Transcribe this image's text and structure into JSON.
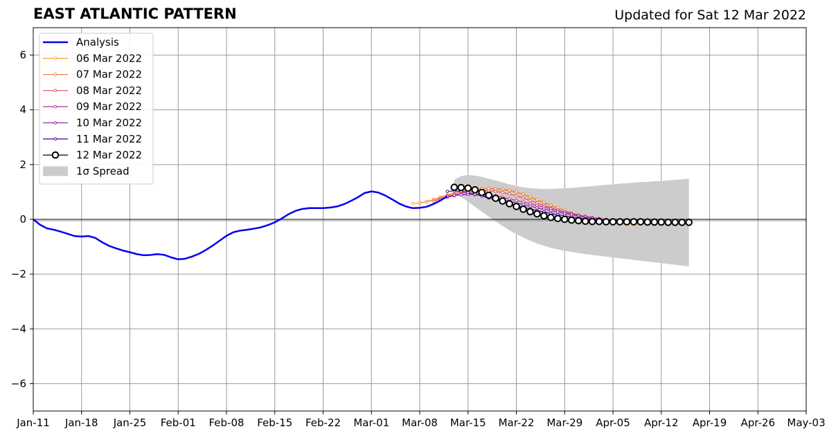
{
  "chart_data": {
    "type": "line",
    "title": "EAST ATLANTIC PATTERN",
    "subtitle": "Updated for Sat 12 Mar 2022",
    "ylim": [
      -7,
      7
    ],
    "xlim": [
      "2022-01-11",
      "2022-05-03"
    ],
    "yticks": [
      6,
      4,
      2,
      0,
      -2,
      -4,
      -6
    ],
    "ytick_labels": [
      "6",
      "4",
      "2",
      "0",
      "−2",
      "−4",
      "−6"
    ],
    "xticks": [
      "2022-01-11",
      "2022-01-18",
      "2022-01-25",
      "2022-02-01",
      "2022-02-08",
      "2022-02-15",
      "2022-02-22",
      "2022-03-01",
      "2022-03-08",
      "2022-03-15",
      "2022-03-22",
      "2022-03-29",
      "2022-04-05",
      "2022-04-12",
      "2022-04-19",
      "2022-04-26",
      "2022-05-03"
    ],
    "xtick_labels": [
      "Jan-11",
      "Jan-18",
      "Jan-25",
      "Feb-01",
      "Feb-08",
      "Feb-15",
      "Feb-22",
      "Mar-01",
      "Mar-08",
      "Mar-15",
      "Mar-22",
      "Mar-29",
      "Apr-05",
      "Apr-12",
      "Apr-19",
      "Apr-26",
      "May-03"
    ],
    "grid": true,
    "legend_position": "top-left",
    "spread_label": "1σ Spread",
    "spread_color": "#cccccc",
    "spread": {
      "x": [
        "2022-03-13",
        "2022-03-14",
        "2022-03-15",
        "2022-03-16",
        "2022-03-17",
        "2022-03-18",
        "2022-03-19",
        "2022-03-20",
        "2022-03-21",
        "2022-03-22",
        "2022-03-23",
        "2022-03-24",
        "2022-03-25",
        "2022-03-26",
        "2022-03-27",
        "2022-03-28",
        "2022-03-29",
        "2022-03-30",
        "2022-03-31",
        "2022-04-01",
        "2022-04-02",
        "2022-04-03",
        "2022-04-04",
        "2022-04-05",
        "2022-04-06",
        "2022-04-07",
        "2022-04-08",
        "2022-04-09",
        "2022-04-10",
        "2022-04-11",
        "2022-04-12",
        "2022-04-13",
        "2022-04-14",
        "2022-04-15",
        "2022-04-16"
      ],
      "upper": [
        1.45,
        1.58,
        1.62,
        1.6,
        1.55,
        1.48,
        1.42,
        1.35,
        1.28,
        1.22,
        1.17,
        1.14,
        1.12,
        1.11,
        1.11,
        1.12,
        1.13,
        1.15,
        1.17,
        1.19,
        1.21,
        1.24,
        1.26,
        1.28,
        1.3,
        1.32,
        1.34,
        1.36,
        1.37,
        1.39,
        1.4,
        1.42,
        1.44,
        1.46,
        1.48
      ],
      "lower": [
        1.0,
        0.82,
        0.64,
        0.46,
        0.28,
        0.1,
        -0.08,
        -0.24,
        -0.4,
        -0.54,
        -0.66,
        -0.78,
        -0.88,
        -0.96,
        -1.04,
        -1.1,
        -1.15,
        -1.19,
        -1.23,
        -1.27,
        -1.3,
        -1.33,
        -1.36,
        -1.39,
        -1.42,
        -1.45,
        -1.48,
        -1.51,
        -1.54,
        -1.57,
        -1.6,
        -1.63,
        -1.66,
        -1.69,
        -1.72
      ]
    },
    "series": [
      {
        "name": "Analysis",
        "style": "analysis",
        "color": "#0000ee",
        "x": [
          "2022-01-11",
          "2022-01-12",
          "2022-01-13",
          "2022-01-14",
          "2022-01-15",
          "2022-01-16",
          "2022-01-17",
          "2022-01-18",
          "2022-01-19",
          "2022-01-20",
          "2022-01-21",
          "2022-01-22",
          "2022-01-23",
          "2022-01-24",
          "2022-01-25",
          "2022-01-26",
          "2022-01-27",
          "2022-01-28",
          "2022-01-29",
          "2022-01-30",
          "2022-01-31",
          "2022-02-01",
          "2022-02-02",
          "2022-02-03",
          "2022-02-04",
          "2022-02-05",
          "2022-02-06",
          "2022-02-07",
          "2022-02-08",
          "2022-02-09",
          "2022-02-10",
          "2022-02-11",
          "2022-02-12",
          "2022-02-13",
          "2022-02-14",
          "2022-02-15",
          "2022-02-16",
          "2022-02-17",
          "2022-02-18",
          "2022-02-19",
          "2022-02-20",
          "2022-02-21",
          "2022-02-22",
          "2022-02-23",
          "2022-02-24",
          "2022-02-25",
          "2022-02-26",
          "2022-02-27",
          "2022-02-28",
          "2022-03-01",
          "2022-03-02",
          "2022-03-03",
          "2022-03-04",
          "2022-03-05",
          "2022-03-06",
          "2022-03-07",
          "2022-03-08",
          "2022-03-09",
          "2022-03-10",
          "2022-03-11",
          "2022-03-12"
        ],
        "y": [
          0,
          -0.2,
          -0.33,
          -0.38,
          -0.45,
          -0.53,
          -0.61,
          -0.63,
          -0.61,
          -0.68,
          -0.84,
          -0.97,
          -1.06,
          -1.14,
          -1.2,
          -1.27,
          -1.31,
          -1.3,
          -1.27,
          -1.3,
          -1.39,
          -1.46,
          -1.44,
          -1.36,
          -1.26,
          -1.12,
          -0.96,
          -0.78,
          -0.6,
          -0.47,
          -0.41,
          -0.38,
          -0.34,
          -0.29,
          -0.21,
          -0.11,
          0.03,
          0.19,
          0.31,
          0.38,
          0.41,
          0.41,
          0.41,
          0.43,
          0.47,
          0.55,
          0.67,
          0.8,
          0.96,
          1.02,
          0.98,
          0.87,
          0.73,
          0.58,
          0.47,
          0.41,
          0.42,
          0.46,
          0.56,
          0.69,
          0.84
        ]
      },
      {
        "name": "06 Mar 2022",
        "style": "forecast",
        "color": "#fba939",
        "x": [
          "2022-03-07",
          "2022-03-08",
          "2022-03-09",
          "2022-03-10",
          "2022-03-11",
          "2022-03-12",
          "2022-03-13",
          "2022-03-14",
          "2022-03-15",
          "2022-03-16",
          "2022-03-17",
          "2022-03-18",
          "2022-03-19",
          "2022-03-20",
          "2022-03-21",
          "2022-03-22",
          "2022-03-23",
          "2022-03-24",
          "2022-03-25",
          "2022-03-26",
          "2022-03-27",
          "2022-03-28",
          "2022-03-29",
          "2022-03-30",
          "2022-03-31",
          "2022-04-01",
          "2022-04-02",
          "2022-04-03",
          "2022-04-04",
          "2022-04-05",
          "2022-04-06",
          "2022-04-07",
          "2022-04-08",
          "2022-04-09",
          "2022-04-10"
        ],
        "y": [
          0.58,
          0.6,
          0.65,
          0.72,
          0.82,
          0.9,
          0.96,
          1.0,
          1.03,
          1.06,
          1.08,
          1.1,
          1.1,
          1.08,
          1.04,
          0.98,
          0.9,
          0.8,
          0.7,
          0.6,
          0.5,
          0.4,
          0.32,
          0.24,
          0.16,
          0.08,
          0.02,
          -0.04,
          -0.1,
          -0.14,
          -0.17,
          -0.18,
          -0.18,
          -0.17,
          -0.15
        ]
      },
      {
        "name": "07 Mar 2022",
        "style": "forecast",
        "color": "#f3813e",
        "x": [
          "2022-03-08",
          "2022-03-09",
          "2022-03-10",
          "2022-03-11",
          "2022-03-12",
          "2022-03-13",
          "2022-03-14",
          "2022-03-15",
          "2022-03-16",
          "2022-03-17",
          "2022-03-18",
          "2022-03-19",
          "2022-03-20",
          "2022-03-21",
          "2022-03-22",
          "2022-03-23",
          "2022-03-24",
          "2022-03-25",
          "2022-03-26",
          "2022-03-27",
          "2022-03-28",
          "2022-03-29",
          "2022-03-30",
          "2022-03-31",
          "2022-04-01",
          "2022-04-02",
          "2022-04-03",
          "2022-04-04",
          "2022-04-05",
          "2022-04-06",
          "2022-04-07",
          "2022-04-08"
        ],
        "y": [
          0.6,
          0.64,
          0.7,
          0.78,
          0.87,
          0.95,
          1.01,
          1.06,
          1.1,
          1.12,
          1.13,
          1.12,
          1.1,
          1.06,
          1.0,
          0.92,
          0.82,
          0.72,
          0.62,
          0.52,
          0.42,
          0.33,
          0.24,
          0.16,
          0.09,
          0.02,
          -0.04,
          -0.09,
          -0.12,
          -0.13,
          -0.13,
          -0.12
        ]
      },
      {
        "name": "08 Mar 2022",
        "style": "forecast",
        "color": "#e25a6a",
        "x": [
          "2022-03-10",
          "2022-03-11",
          "2022-03-12",
          "2022-03-13",
          "2022-03-14",
          "2022-03-15",
          "2022-03-16",
          "2022-03-17",
          "2022-03-18",
          "2022-03-19",
          "2022-03-20",
          "2022-03-21",
          "2022-03-22",
          "2022-03-23",
          "2022-03-24",
          "2022-03-25",
          "2022-03-26",
          "2022-03-27",
          "2022-03-28",
          "2022-03-29",
          "2022-03-30",
          "2022-03-31",
          "2022-04-01",
          "2022-04-02",
          "2022-04-03",
          "2022-04-04",
          "2022-04-05",
          "2022-04-06"
        ],
        "y": [
          0.66,
          0.74,
          0.82,
          0.9,
          0.96,
          1.01,
          1.04,
          1.05,
          1.04,
          1.02,
          0.98,
          0.93,
          0.86,
          0.78,
          0.69,
          0.6,
          0.51,
          0.42,
          0.34,
          0.26,
          0.19,
          0.13,
          0.08,
          0.04,
          0.01,
          -0.02,
          -0.04,
          -0.05
        ]
      },
      {
        "name": "09 Mar 2022",
        "style": "forecast",
        "color": "#b93c9a",
        "x": [
          "2022-03-11",
          "2022-03-12",
          "2022-03-13",
          "2022-03-14",
          "2022-03-15",
          "2022-03-16",
          "2022-03-17",
          "2022-03-18",
          "2022-03-19",
          "2022-03-20",
          "2022-03-21",
          "2022-03-22",
          "2022-03-23",
          "2022-03-24",
          "2022-03-25",
          "2022-03-26",
          "2022-03-27",
          "2022-03-28",
          "2022-03-29",
          "2022-03-30",
          "2022-03-31",
          "2022-04-01",
          "2022-04-02",
          "2022-04-03",
          "2022-04-04",
          "2022-04-05"
        ],
        "y": [
          0.72,
          0.8,
          0.86,
          0.9,
          0.93,
          0.94,
          0.93,
          0.9,
          0.86,
          0.81,
          0.75,
          0.69,
          0.63,
          0.57,
          0.51,
          0.45,
          0.39,
          0.33,
          0.27,
          0.21,
          0.16,
          0.11,
          0.07,
          0.03,
          0.0,
          -0.02
        ]
      },
      {
        "name": "10 Mar 2022",
        "style": "forecast",
        "color": "#9424a8",
        "x": [
          "2022-03-12",
          "2022-03-13",
          "2022-03-14",
          "2022-03-15",
          "2022-03-16",
          "2022-03-17",
          "2022-03-18",
          "2022-03-19",
          "2022-03-20",
          "2022-03-21",
          "2022-03-22",
          "2022-03-23",
          "2022-03-24",
          "2022-03-25",
          "2022-03-26",
          "2022-03-27",
          "2022-03-28",
          "2022-03-29",
          "2022-03-30",
          "2022-03-31",
          "2022-04-01",
          "2022-04-02",
          "2022-04-03",
          "2022-04-04",
          "2022-04-05",
          "2022-04-06",
          "2022-04-07"
        ],
        "y": [
          0.84,
          0.88,
          0.9,
          0.91,
          0.9,
          0.87,
          0.83,
          0.78,
          0.72,
          0.66,
          0.6,
          0.54,
          0.48,
          0.42,
          0.37,
          0.32,
          0.27,
          0.22,
          0.17,
          0.12,
          0.08,
          0.04,
          0.01,
          -0.02,
          -0.04,
          -0.05,
          -0.06
        ]
      },
      {
        "name": "11 Mar 2022",
        "style": "forecast",
        "color": "#5a0fa0",
        "x": [
          "2022-03-12",
          "2022-03-13",
          "2022-03-14",
          "2022-03-15",
          "2022-03-16",
          "2022-03-17",
          "2022-03-18",
          "2022-03-19",
          "2022-03-20",
          "2022-03-21",
          "2022-03-22",
          "2022-03-23",
          "2022-03-24",
          "2022-03-25",
          "2022-03-26",
          "2022-03-27",
          "2022-03-28",
          "2022-03-29",
          "2022-03-30",
          "2022-03-31",
          "2022-04-01",
          "2022-04-02",
          "2022-04-03",
          "2022-04-04",
          "2022-04-05",
          "2022-04-06",
          "2022-04-07",
          "2022-04-08",
          "2022-04-09"
        ],
        "y": [
          1.02,
          1.04,
          1.02,
          0.98,
          0.92,
          0.85,
          0.78,
          0.71,
          0.64,
          0.57,
          0.5,
          0.44,
          0.38,
          0.32,
          0.27,
          0.22,
          0.17,
          0.13,
          0.09,
          0.05,
          0.02,
          -0.01,
          -0.03,
          -0.05,
          -0.06,
          -0.07,
          -0.08,
          -0.08,
          -0.09
        ]
      },
      {
        "name": "12 Mar 2022",
        "style": "latest",
        "color": "#000000",
        "x": [
          "2022-03-13",
          "2022-03-14",
          "2022-03-15",
          "2022-03-16",
          "2022-03-17",
          "2022-03-18",
          "2022-03-19",
          "2022-03-20",
          "2022-03-21",
          "2022-03-22",
          "2022-03-23",
          "2022-03-24",
          "2022-03-25",
          "2022-03-26",
          "2022-03-27",
          "2022-03-28",
          "2022-03-29",
          "2022-03-30",
          "2022-03-31",
          "2022-04-01",
          "2022-04-02",
          "2022-04-03",
          "2022-04-04",
          "2022-04-05",
          "2022-04-06",
          "2022-04-07",
          "2022-04-08",
          "2022-04-09",
          "2022-04-10",
          "2022-04-11",
          "2022-04-12",
          "2022-04-13",
          "2022-04-14",
          "2022-04-15",
          "2022-04-16"
        ],
        "y": [
          1.17,
          1.16,
          1.14,
          1.08,
          0.98,
          0.88,
          0.77,
          0.67,
          0.57,
          0.47,
          0.37,
          0.28,
          0.2,
          0.13,
          0.07,
          0.03,
          0.0,
          -0.03,
          -0.05,
          -0.07,
          -0.08,
          -0.08,
          -0.09,
          -0.09,
          -0.09,
          -0.09,
          -0.09,
          -0.09,
          -0.1,
          -0.1,
          -0.1,
          -0.11,
          -0.11,
          -0.11,
          -0.11
        ]
      }
    ]
  }
}
